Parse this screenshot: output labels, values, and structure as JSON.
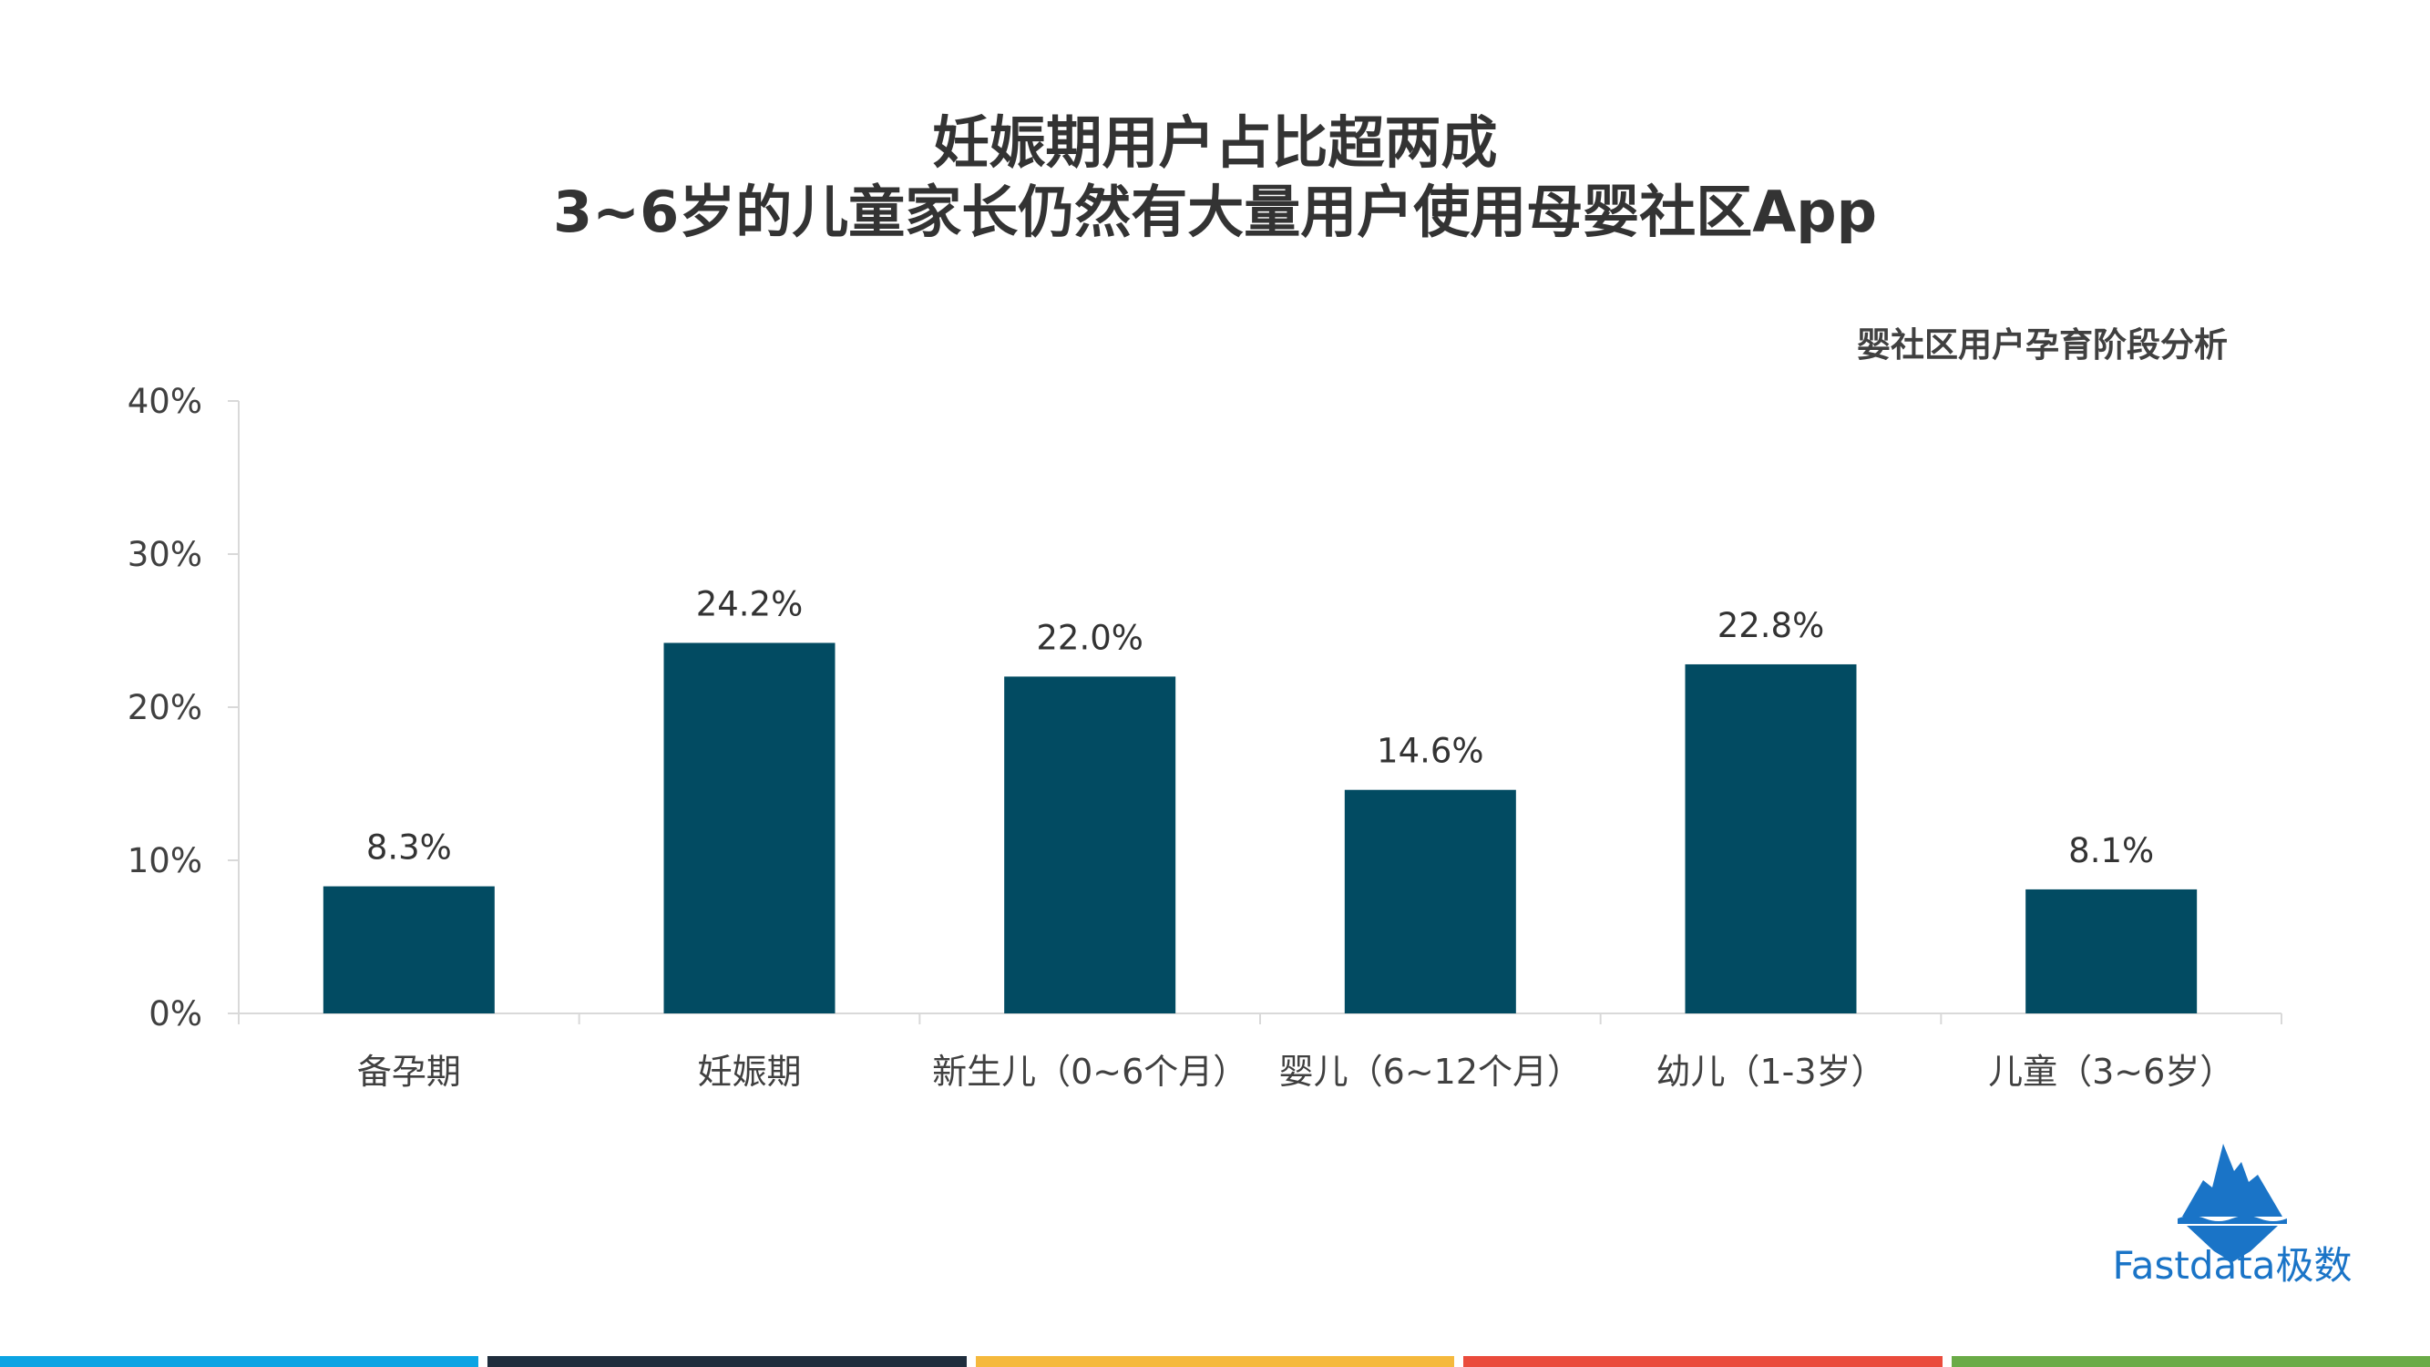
{
  "title_line1": "妊娠期用户占比超两成",
  "title_line2": "3~6岁的儿童家长仍然有大量用户使用母婴社区App",
  "logo_text": "Fastdata极数",
  "colors": {
    "bar": "#024b62",
    "axis": "#d9d9d9",
    "text": "#404040",
    "footer": [
      "#0ca4e3",
      "#1f2d3d",
      "#f5b93d",
      "#ea4b3c",
      "#6aab47"
    ]
  },
  "chart_data": {
    "type": "bar",
    "title": "婴社区用户孕育阶段分析",
    "categories": [
      "备孕期",
      "妊娠期",
      "新生儿（0~6个月）",
      "婴儿（6~12个月）",
      "幼儿（1-3岁）",
      "儿童（3~6岁）"
    ],
    "values": [
      8.3,
      24.2,
      22.0,
      14.6,
      22.8,
      8.1
    ],
    "value_labels": [
      "8.3%",
      "24.2%",
      "22.0%",
      "14.6%",
      "22.8%",
      "8.1%"
    ],
    "ylim": [
      0,
      40
    ],
    "yticks": [
      0,
      10,
      20,
      30,
      40
    ],
    "ytick_labels": [
      "0%",
      "10%",
      "20%",
      "30%",
      "40%"
    ],
    "xlabel": "",
    "ylabel": "",
    "grid": false,
    "legend": "none"
  }
}
